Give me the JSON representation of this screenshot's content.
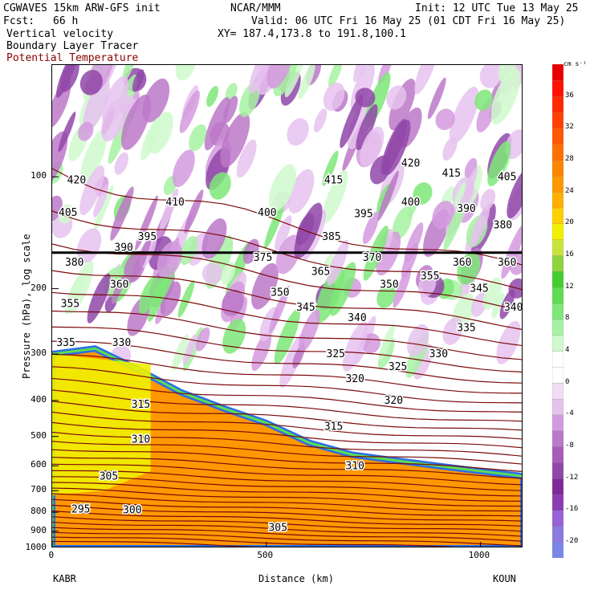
{
  "header": {
    "model": "CGWAVES 15km ARW-GFS init",
    "org": "NCAR/MMM",
    "init": "Init: 12 UTC Tue 13 May 25",
    "fcst_label": "Fcst:",
    "fcst_value": "66 h",
    "valid": "Valid: 06 UTC Fri 16 May 25 (01 CDT Fri 16 May 25)",
    "field1": "Vertical velocity",
    "field2": "Boundary Layer Tracer",
    "field3": "Potential Temperature",
    "xy": "XY= 187.4,173.8 to 191.8,100.1"
  },
  "colors": {
    "theta": "#7a0a0a",
    "field3_text": "#8b0000"
  },
  "chart_data": {
    "type": "heatmap",
    "ylabel": "Pressure (hPa), log scale",
    "xlabel": "Distance (km)",
    "xlim": [
      0,
      1100
    ],
    "ylim": [
      1000,
      50
    ],
    "y_scale": "log",
    "x_ticks": [
      0,
      500,
      1000
    ],
    "x_tick_labels": [
      "0",
      "500",
      "1000"
    ],
    "x_end_labels": {
      "left": "KABR",
      "right": "KOUN"
    },
    "y_ticks": [
      100,
      200,
      300,
      400,
      500,
      600,
      700,
      800,
      900,
      1000
    ],
    "y_tick_labels": [
      "100",
      "200",
      "300",
      "400",
      "500",
      "600",
      "700",
      "800",
      "900",
      "1000"
    ],
    "colorbar": {
      "unit": "cm s⁻¹",
      "levels": [
        -22,
        -20,
        -18,
        -16,
        -14,
        -12,
        -10,
        -8,
        -6,
        -4,
        -2,
        0,
        2,
        4,
        6,
        8,
        10,
        12,
        14,
        16,
        18,
        20,
        22,
        24,
        26,
        28,
        30,
        32,
        34,
        36,
        38,
        40
      ],
      "tick_labels": [
        "-20",
        "-16",
        "-12",
        "-8",
        "-4",
        "0",
        "4",
        "8",
        "12",
        "16",
        "20",
        "24",
        "28",
        "32",
        "36"
      ],
      "colors": [
        "#7a86e8",
        "#8c7ae0",
        "#9a62d8",
        "#8a3cb0",
        "#7e2a9a",
        "#9048a8",
        "#a85cb8",
        "#bc78c8",
        "#d49ade",
        "#e6c2ee",
        "#f2dcf6",
        "#ffffff",
        "#ffffff",
        "#cffacc",
        "#a6f2a2",
        "#7ee878",
        "#5edc52",
        "#44cc30",
        "#8ed43c",
        "#c8e43c",
        "#f0f000",
        "#ffd000",
        "#ffb000",
        "#ff9800",
        "#ff8400",
        "#ff7000",
        "#ff5800",
        "#ff4000",
        "#ff2800",
        "#ff1000",
        "#e80000"
      ]
    },
    "theta_contour_labels": [
      {
        "x": 35,
        "p": 102,
        "v": "420"
      },
      {
        "x": 15,
        "p": 125,
        "v": "405"
      },
      {
        "x": 265,
        "p": 117,
        "v": "410"
      },
      {
        "x": 200,
        "p": 145,
        "v": "395"
      },
      {
        "x": 145,
        "p": 155,
        "v": "390"
      },
      {
        "x": 30,
        "p": 170,
        "v": "380"
      },
      {
        "x": 135,
        "p": 195,
        "v": "360"
      },
      {
        "x": 20,
        "p": 220,
        "v": "355"
      },
      {
        "x": 10,
        "p": 280,
        "v": "335"
      },
      {
        "x": 140,
        "p": 280,
        "v": "330"
      },
      {
        "x": 185,
        "p": 410,
        "v": "315"
      },
      {
        "x": 185,
        "p": 510,
        "v": "310"
      },
      {
        "x": 110,
        "p": 640,
        "v": "305"
      },
      {
        "x": 165,
        "p": 790,
        "v": "300"
      },
      {
        "x": 45,
        "p": 785,
        "v": "295"
      },
      {
        "x": 480,
        "p": 125,
        "v": "400"
      },
      {
        "x": 470,
        "p": 165,
        "v": "375"
      },
      {
        "x": 510,
        "p": 205,
        "v": "350"
      },
      {
        "x": 570,
        "p": 225,
        "v": "345"
      },
      {
        "x": 605,
        "p": 180,
        "v": "365"
      },
      {
        "x": 690,
        "p": 240,
        "v": "340"
      },
      {
        "x": 630,
        "p": 145,
        "v": "385"
      },
      {
        "x": 635,
        "p": 102,
        "v": "415"
      },
      {
        "x": 705,
        "p": 126,
        "v": "395"
      },
      {
        "x": 725,
        "p": 165,
        "v": "370"
      },
      {
        "x": 765,
        "p": 195,
        "v": "350"
      },
      {
        "x": 640,
        "p": 300,
        "v": "325"
      },
      {
        "x": 685,
        "p": 350,
        "v": "320"
      },
      {
        "x": 785,
        "p": 325,
        "v": "325"
      },
      {
        "x": 775,
        "p": 400,
        "v": "320"
      },
      {
        "x": 635,
        "p": 470,
        "v": "315"
      },
      {
        "x": 685,
        "p": 600,
        "v": "310"
      },
      {
        "x": 505,
        "p": 880,
        "v": "305"
      },
      {
        "x": 815,
        "p": 92,
        "v": "420"
      },
      {
        "x": 815,
        "p": 117,
        "v": "400"
      },
      {
        "x": 860,
        "p": 185,
        "v": "355"
      },
      {
        "x": 880,
        "p": 300,
        "v": "330"
      },
      {
        "x": 910,
        "p": 98,
        "v": "415"
      },
      {
        "x": 945,
        "p": 122,
        "v": "390"
      },
      {
        "x": 935,
        "p": 170,
        "v": "360"
      },
      {
        "x": 975,
        "p": 200,
        "v": "345"
      },
      {
        "x": 945,
        "p": 255,
        "v": "335"
      },
      {
        "x": 1040,
        "p": 100,
        "v": "405"
      },
      {
        "x": 1030,
        "p": 135,
        "v": "380"
      },
      {
        "x": 1040,
        "p": 170,
        "v": "360"
      },
      {
        "x": 1055,
        "p": 225,
        "v": "340"
      }
    ]
  }
}
